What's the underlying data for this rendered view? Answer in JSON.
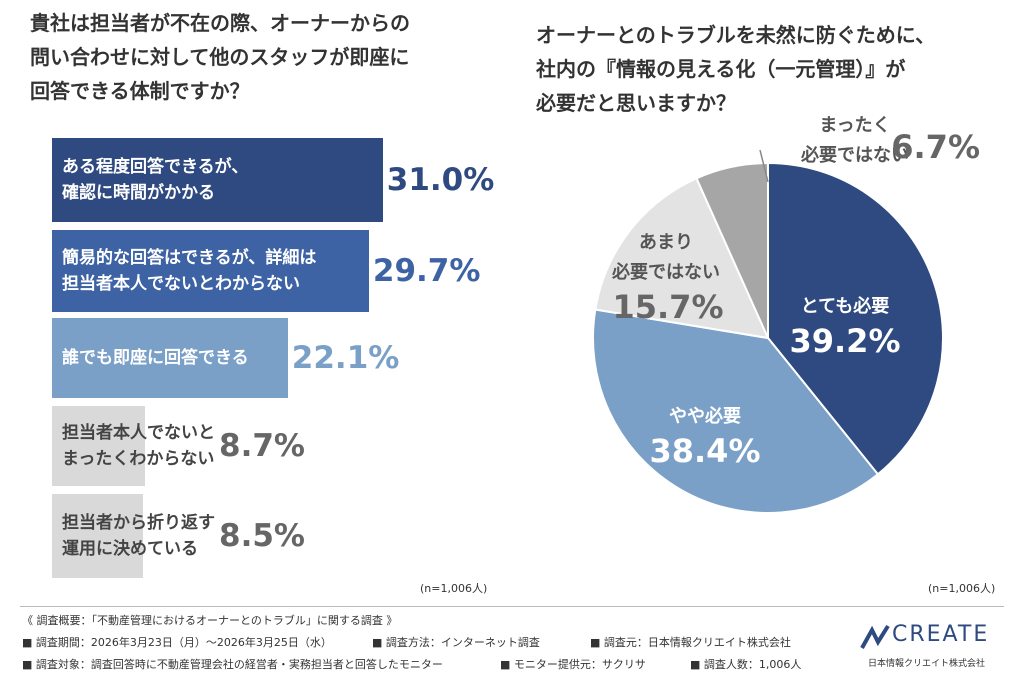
{
  "chart_data": [
    {
      "type": "bar",
      "orientation": "horizontal",
      "title": "貴社は担当者が不在の際、オーナーからの\n問い合わせに対して他のスタッフが即座に\n回答できる体制ですか？",
      "categories": [
        "ある程度回答できるが、\n確認に時間がかかる",
        "簡易的な回答はできるが、詳細は\n担当者本人でないとわからない",
        "誰でも即座に回答できる",
        "担当者本人でないと\nまったくわからない",
        "担当者から折り返す\n運用に決めている"
      ],
      "values": [
        31.0,
        29.7,
        22.1,
        8.7,
        8.5
      ],
      "value_labels": [
        "31.0%",
        "29.7%",
        "22.1%",
        "8.7%",
        "8.5%"
      ],
      "colors": [
        "#2e4a80",
        "#3d63a5",
        "#7aa0c8",
        "#d9d9d9",
        "#d9d9d9"
      ],
      "note": "(n=1,006人)"
    },
    {
      "type": "pie",
      "title": "オーナーとのトラブルを未然に防ぐために、\n社内の『情報の見える化（一元管理）』が\n必要だと思いますか？",
      "categories": [
        "とても必要",
        "やや必要",
        "あまり\n必要ではない",
        "まったく\n必要ではない"
      ],
      "values": [
        39.2,
        38.4,
        15.7,
        6.7
      ],
      "value_labels": [
        "39.2%",
        "38.4%",
        "15.7%",
        "6.7%"
      ],
      "colors": [
        "#2e4a80",
        "#7aa0c8",
        "#e3e3e3",
        "#a6a6a6"
      ],
      "note": "(n=1,006人)"
    }
  ],
  "footer": {
    "heading": "《 調査概要：「不動産管理におけるオーナーとのトラブル」に関する調査 》",
    "items": [
      "■ 調査期間：2026年3月23日（月）～2026年3月25日（水）",
      "■ 調査方法：インターネット調査",
      "■ 調査元：日本情報クリエイト株式会社",
      "■ 調査対象：調査回答時に不動産管理会社の経営者・実務担当者と回答したモニター",
      "■ モニター提供元：サクリサ",
      "■ 調査人数：1,006人"
    ],
    "logo": "CREATE",
    "company": "日本情報クリエイト株式会社"
  }
}
